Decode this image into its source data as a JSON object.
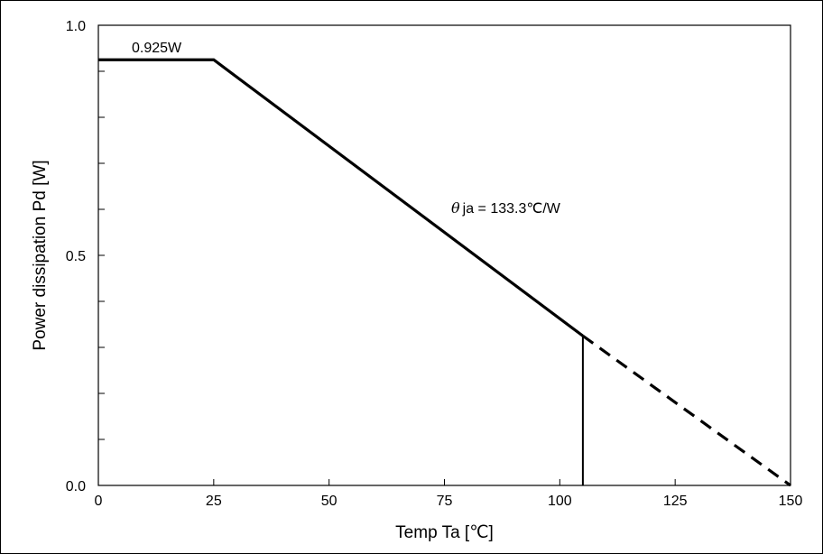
{
  "chart_data": {
    "type": "line",
    "xlabel": "Temp Ta [℃]",
    "ylabel": "Power dissipation Pd [W]",
    "xlim": [
      0,
      150
    ],
    "ylim": [
      0,
      1.0
    ],
    "x_ticks": [
      0,
      25,
      50,
      75,
      100,
      125,
      150
    ],
    "x_tick_labels": [
      "0",
      "25",
      "50",
      "75",
      "100",
      "125",
      "150"
    ],
    "y_ticks": [
      0,
      0.5,
      1.0
    ],
    "y_tick_labels": [
      "0.0",
      "0.5",
      "1.0"
    ],
    "y_minor_ticks": [
      0.1,
      0.2,
      0.3,
      0.4,
      0.6,
      0.7,
      0.8,
      0.9
    ],
    "grid": false,
    "series": [
      {
        "style": "solid",
        "x": [
          0,
          25,
          105
        ],
        "y": [
          0.925,
          0.925,
          0.325
        ]
      },
      {
        "style": "dashed",
        "x": [
          105,
          150
        ],
        "y": [
          0.325,
          0
        ]
      }
    ],
    "vertical_marker": {
      "x": 105,
      "y_from": 0,
      "y_to": 0.325
    },
    "annotations": {
      "power_label": "0.925W",
      "theta_symbol": "θ",
      "theta_text": "ja = 133.3℃/W"
    },
    "colors": {
      "line": "#000000",
      "background": "#ffffff"
    }
  }
}
